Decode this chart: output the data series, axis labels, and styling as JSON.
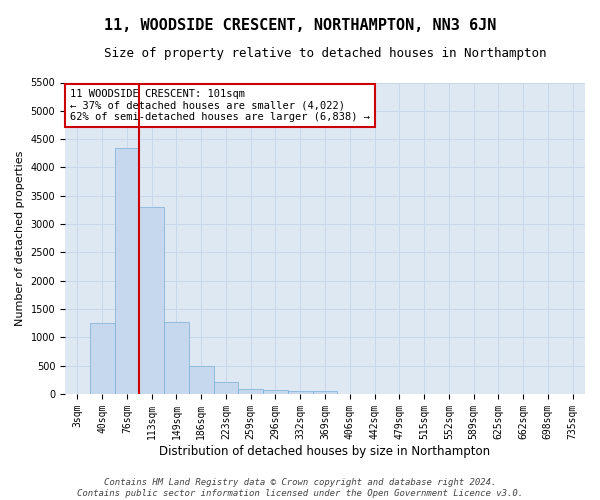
{
  "title": "11, WOODSIDE CRESCENT, NORTHAMPTON, NN3 6JN",
  "subtitle": "Size of property relative to detached houses in Northampton",
  "xlabel": "Distribution of detached houses by size in Northampton",
  "ylabel": "Number of detached properties",
  "categories": [
    "3sqm",
    "40sqm",
    "76sqm",
    "113sqm",
    "149sqm",
    "186sqm",
    "223sqm",
    "259sqm",
    "296sqm",
    "332sqm",
    "369sqm",
    "406sqm",
    "442sqm",
    "479sqm",
    "515sqm",
    "552sqm",
    "589sqm",
    "625sqm",
    "662sqm",
    "698sqm",
    "735sqm"
  ],
  "values": [
    0,
    1250,
    4350,
    3300,
    1270,
    490,
    215,
    85,
    70,
    55,
    50,
    0,
    0,
    0,
    0,
    0,
    0,
    0,
    0,
    0,
    0
  ],
  "bar_color": "#c5d8ee",
  "bar_edge_color": "#7aadd4",
  "vline_x": 2.5,
  "vline_color": "#cc0000",
  "annotation_text": "11 WOODSIDE CRESCENT: 101sqm\n← 37% of detached houses are smaller (4,022)\n62% of semi-detached houses are larger (6,838) →",
  "annotation_box_color": "#cc0000",
  "ylim": [
    0,
    5500
  ],
  "yticks": [
    0,
    500,
    1000,
    1500,
    2000,
    2500,
    3000,
    3500,
    4000,
    4500,
    5000,
    5500
  ],
  "grid_color": "#c8d8ea",
  "bg_color": "#dde8f2",
  "footer": "Contains HM Land Registry data © Crown copyright and database right 2024.\nContains public sector information licensed under the Open Government Licence v3.0.",
  "title_fontsize": 11,
  "subtitle_fontsize": 9,
  "xlabel_fontsize": 8.5,
  "ylabel_fontsize": 8,
  "tick_fontsize": 7,
  "annotation_fontsize": 7.5,
  "footer_fontsize": 6.5
}
